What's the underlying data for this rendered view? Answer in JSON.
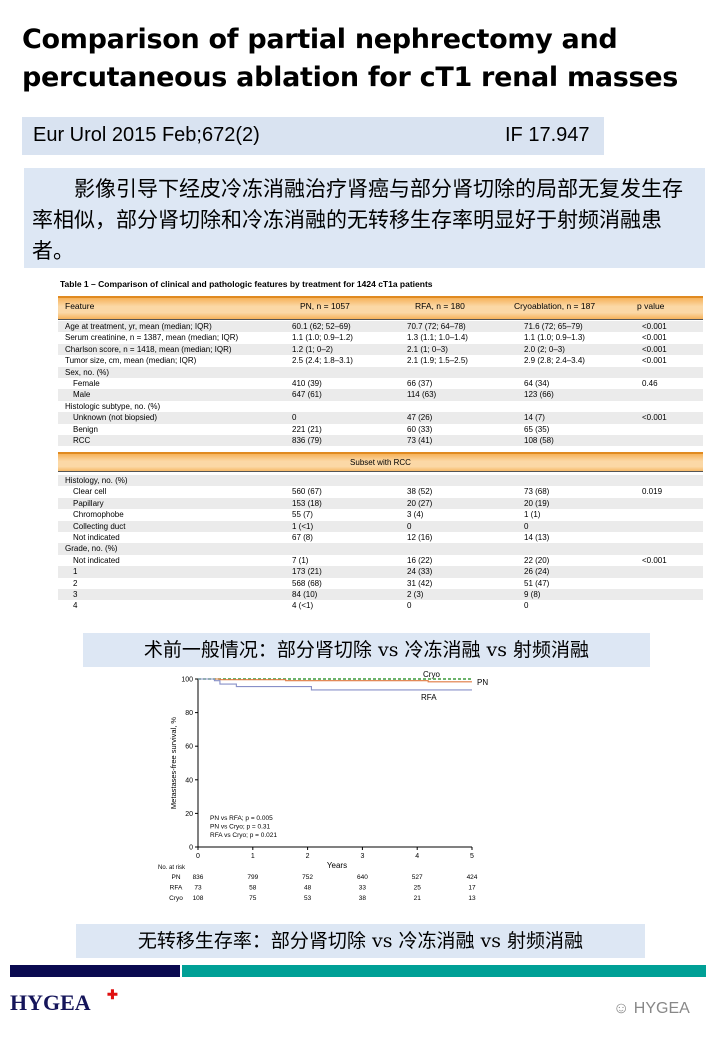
{
  "title": [
    "Comparison of partial nephrectomy and",
    "percutaneous ablation for cT1 renal masses"
  ],
  "citation": {
    "journal": "Eur Urol 2015 Feb;672(2)",
    "impact_factor": "IF 17.947"
  },
  "summary": "影像引导下经皮冷冻消融治疗肾癌与部分肾切除的局部无复发生存率相似，部分肾切除和冷冻消融的无转移生存率明显好于射频消融患者。",
  "table": {
    "title": "Table 1 – Comparison of clinical and pathologic features by treatment for 1424 cT1a patients",
    "headers": [
      "Feature",
      "PN, n = 1057",
      "RFA, n = 180",
      "Cryoablation, n = 187",
      "p value"
    ],
    "rows": [
      [
        "Age at treatment, yr, mean (median; IQR)",
        "60.1 (62; 52–69)",
        "70.7 (72; 64–78)",
        "71.6 (72; 65–79)",
        "<0.001"
      ],
      [
        "Serum creatinine, n = 1387, mean (median; IQR)",
        "1.1 (1.0; 0.9–1.2)",
        "1.3 (1.1; 1.0–1.4)",
        "1.1 (1.0; 0.9–1.3)",
        "<0.001"
      ],
      [
        "Charlson score, n = 1418, mean (median; IQR)",
        "1.2 (1; 0–2)",
        "2.1 (1; 0–3)",
        "2.0 (2; 0–3)",
        "<0.001"
      ],
      [
        "Tumor size, cm, mean (median; IQR)",
        "2.5 (2.4; 1.8–3.1)",
        "2.1 (1.9; 1.5–2.5)",
        "2.9 (2.8; 2.4–3.4)",
        "<0.001"
      ],
      [
        "Sex, no. (%)",
        "",
        "",
        "",
        ""
      ],
      [
        "  Female",
        "410 (39)",
        "66 (37)",
        "64 (34)",
        "0.46"
      ],
      [
        "  Male",
        "647 (61)",
        "114 (63)",
        "123 (66)",
        ""
      ],
      [
        "Histologic subtype, no. (%)",
        "",
        "",
        "",
        ""
      ],
      [
        "  Unknown (not biopsied)",
        "0",
        "47 (26)",
        "14 (7)",
        "<0.001"
      ],
      [
        "  Benign",
        "221 (21)",
        "60 (33)",
        "65 (35)",
        ""
      ],
      [
        "  RCC",
        "836 (79)",
        "73 (41)",
        "108 (58)",
        ""
      ]
    ],
    "subset_label": "Subset with RCC",
    "subset_rows": [
      [
        "Histology, no. (%)",
        "",
        "",
        "",
        ""
      ],
      [
        "  Clear cell",
        "560 (67)",
        "38 (52)",
        "73 (68)",
        "0.019"
      ],
      [
        "  Papillary",
        "153 (18)",
        "20 (27)",
        "20 (19)",
        ""
      ],
      [
        "  Chromophobe",
        "55 (7)",
        "3 (4)",
        "1 (1)",
        ""
      ],
      [
        "  Collecting duct",
        "1 (<1)",
        "0",
        "0",
        ""
      ],
      [
        "  Not indicated",
        "67 (8)",
        "12 (16)",
        "14 (13)",
        ""
      ],
      [
        "Grade, no. (%)",
        "",
        "",
        "",
        ""
      ],
      [
        "  Not indicated",
        "7 (1)",
        "16 (22)",
        "22 (20)",
        "<0.001"
      ],
      [
        "  1",
        "173 (21)",
        "24 (33)",
        "26 (24)",
        ""
      ],
      [
        "  2",
        "568 (68)",
        "31 (42)",
        "51 (47)",
        ""
      ],
      [
        "  3",
        "84 (10)",
        "2 (3)",
        "9 (8)",
        ""
      ],
      [
        "  4",
        "4 (<1)",
        "0",
        "0",
        ""
      ]
    ]
  },
  "caption_table": "术前一般情况：部分肾切除 vs 冷冻消融 vs 射频消融",
  "caption_chart": "无转移生存率：部分肾切除 vs 冷冻消融 vs 射频消融",
  "chart_data": {
    "type": "line",
    "xlabel": "Years",
    "ylabel": "Metastases-free survival, %",
    "xlim": [
      0,
      5
    ],
    "ylim": [
      0,
      100
    ],
    "xticks": [
      "0",
      "1",
      "2",
      "3",
      "4",
      "5"
    ],
    "yticks": [
      "0",
      "20",
      "40",
      "60",
      "80",
      "100"
    ],
    "series": [
      {
        "name": "Cryo",
        "color": "#3a9a3a",
        "dash": true,
        "x": [
          0,
          5
        ],
        "y": [
          100,
          100
        ]
      },
      {
        "name": "PN",
        "color": "#e07a40",
        "x": [
          0,
          0.4,
          1.6,
          4.2,
          5
        ],
        "y": [
          100,
          99.6,
          99,
          98.3,
          98.3
        ]
      },
      {
        "name": "RFA",
        "color": "#8890c8",
        "x": [
          0,
          0.3,
          0.4,
          0.7,
          2.07,
          5
        ],
        "y": [
          100,
          99,
          97,
          95.5,
          93.5,
          93.5
        ]
      }
    ],
    "annotations": [
      "PN vs RFA; p = 0.005",
      "PN vs Cryo; p = 0.31",
      "RFA vs Cryo; p = 0.021"
    ],
    "risk_table": {
      "label": "No. at risk",
      "rows": [
        {
          "name": "PN",
          "values": [
            "836",
            "799",
            "752",
            "640",
            "527",
            "424"
          ]
        },
        {
          "name": "RFA",
          "values": [
            "73",
            "58",
            "48",
            "33",
            "25",
            "17"
          ]
        },
        {
          "name": "Cryo",
          "values": [
            "108",
            "75",
            "53",
            "38",
            "21",
            "13"
          ]
        }
      ]
    }
  },
  "footer": {
    "logo": "HYGEA",
    "watermark": "HYGEA",
    "colors": {
      "navy": "#0a0a50",
      "teal": "#00a096"
    }
  }
}
